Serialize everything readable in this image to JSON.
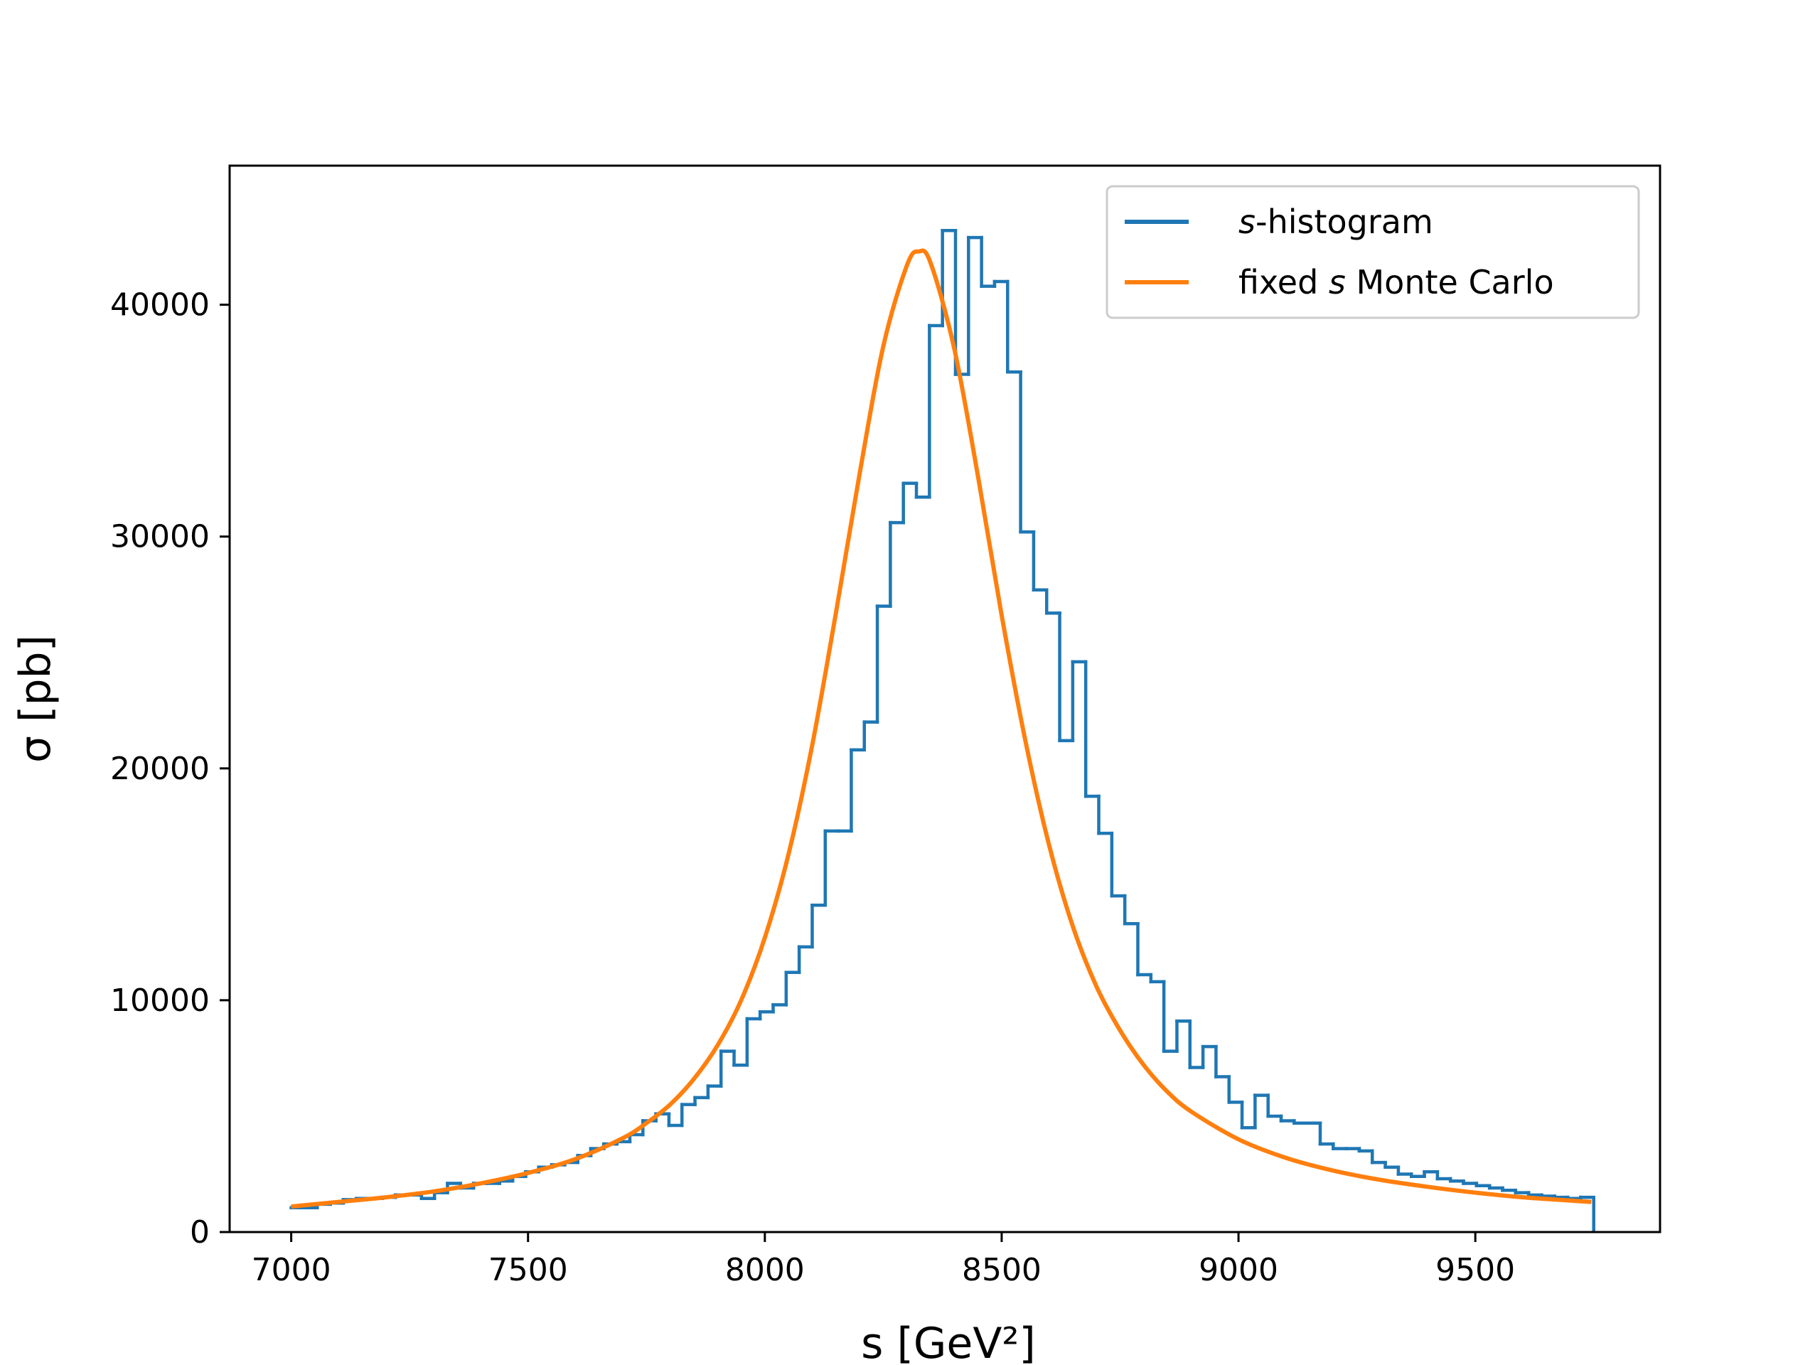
{
  "chart_data": {
    "type": "line",
    "xlabel": "s [GeV²]",
    "ylabel": "σ [pb]",
    "xlim": [
      6870,
      9890
    ],
    "ylim": [
      0,
      46000
    ],
    "x_ticks": [
      "7000",
      "7500",
      "8000",
      "8500",
      "9000",
      "9500"
    ],
    "y_ticks": [
      "0",
      "10000",
      "20000",
      "30000",
      "40000"
    ],
    "grid": false,
    "legend_position": "top-right",
    "legend": [
      {
        "label": "s-histogram",
        "italic_part": "s",
        "rest": "-histogram",
        "color": "#1f77b4"
      },
      {
        "label": "fixed s Monte Carlo",
        "pre": "fixed ",
        "italic_part": "s",
        "rest": " Monte Carlo",
        "color": "#ff7f0e"
      }
    ],
    "series": [
      {
        "name": "s-histogram",
        "kind": "step",
        "color": "#1f77b4",
        "bin_start": 7000,
        "bin_width": 27.5,
        "values": [
          1050,
          1050,
          1200,
          1250,
          1400,
          1450,
          1450,
          1500,
          1600,
          1600,
          1450,
          1700,
          2100,
          1900,
          2100,
          2100,
          2200,
          2400,
          2600,
          2800,
          2900,
          3000,
          3300,
          3600,
          3800,
          3900,
          4200,
          4800,
          5100,
          4600,
          5500,
          5800,
          6300,
          7800,
          7200,
          9200,
          9500,
          9800,
          11200,
          12300,
          14100,
          17300,
          17300,
          20800,
          22000,
          27000,
          30600,
          32300,
          31700,
          39100,
          43200,
          37000,
          42900,
          40800,
          41000,
          37100,
          30200,
          27700,
          26700,
          21200,
          24600,
          18800,
          17200,
          14500,
          13300,
          11100,
          10800,
          7800,
          9100,
          7100,
          8000,
          6700,
          5600,
          4500,
          5900,
          5000,
          4800,
          4700,
          4700,
          3800,
          3600,
          3600,
          3500,
          3000,
          2800,
          2500,
          2400,
          2600,
          2300,
          2200,
          2100,
          2000,
          1900,
          1800,
          1700,
          1600,
          1550,
          1500,
          1450,
          1500
        ]
      },
      {
        "name": "fixed s Monte Carlo",
        "kind": "line",
        "color": "#ff7f0e",
        "peak_x": 8325,
        "peak_y": 42300,
        "x": [
          7000,
          7100,
          7200,
          7300,
          7400,
          7500,
          7600,
          7700,
          7750,
          7800,
          7850,
          7900,
          7950,
          8000,
          8050,
          8100,
          8150,
          8200,
          8250,
          8300,
          8325,
          8350,
          8400,
          8450,
          8500,
          8550,
          8600,
          8650,
          8700,
          8750,
          8800,
          8850,
          8900,
          9000,
          9100,
          9200,
          9300,
          9400,
          9500,
          9600,
          9745
        ],
        "y": [
          1100,
          1300,
          1500,
          1750,
          2100,
          2550,
          3150,
          4050,
          4700,
          5500,
          6600,
          8050,
          10000,
          12700,
          16300,
          21000,
          26700,
          32700,
          38200,
          41700,
          42300,
          41800,
          38100,
          32600,
          26600,
          21200,
          16700,
          13200,
          10600,
          8700,
          7200,
          6050,
          5200,
          4000,
          3200,
          2650,
          2250,
          1950,
          1700,
          1500,
          1300
        ]
      }
    ]
  }
}
